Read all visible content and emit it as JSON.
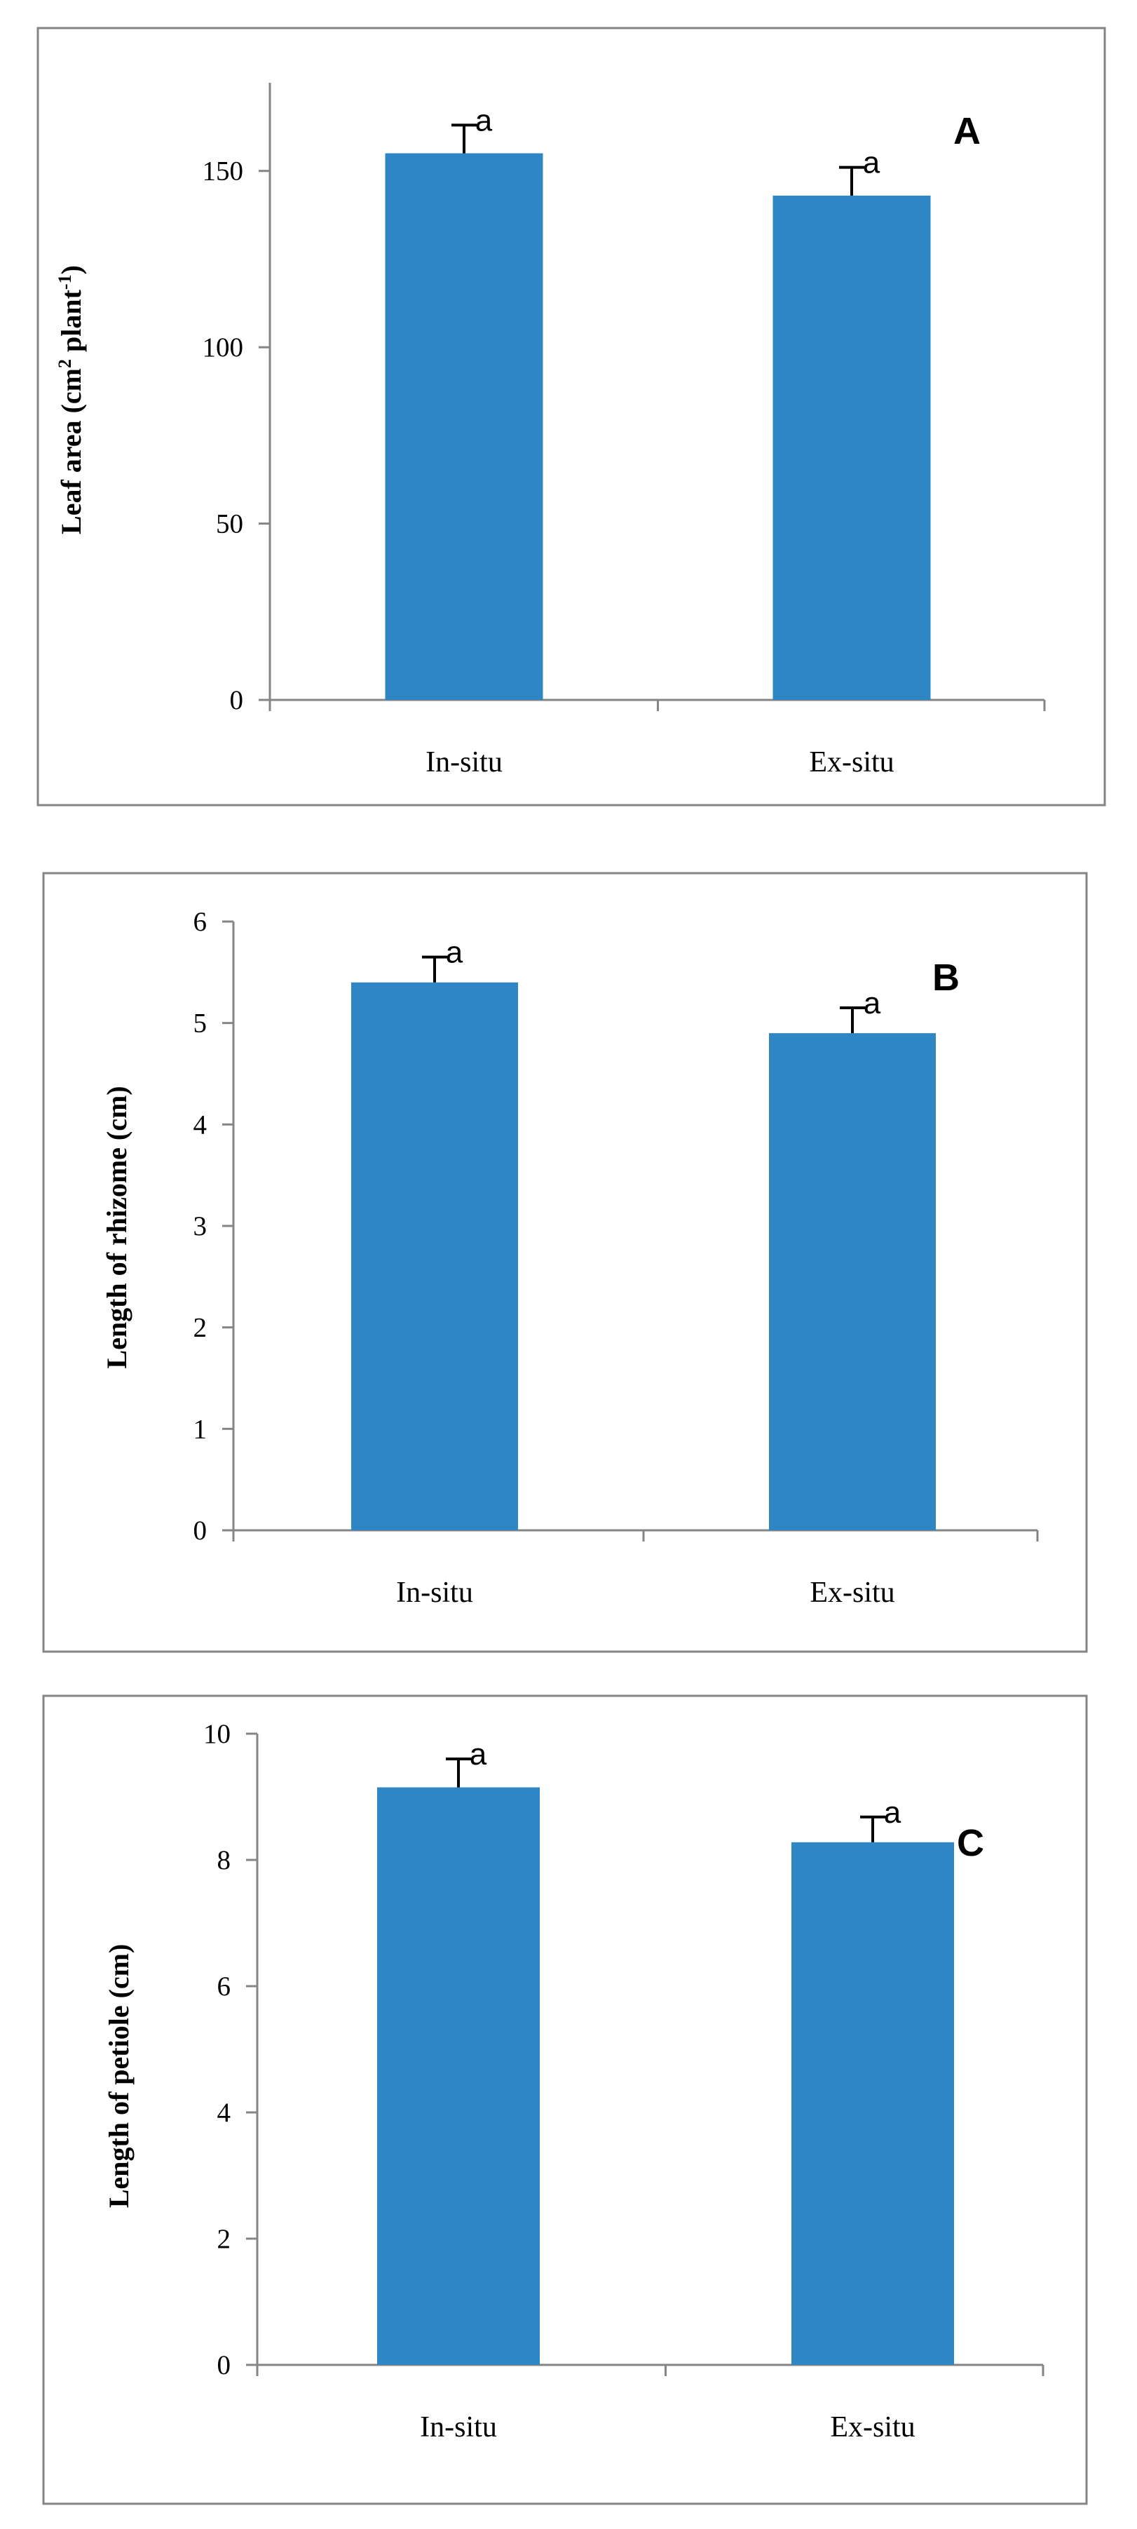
{
  "colors": {
    "bar": "#2e87c4",
    "axis": "#858585",
    "frame": "#858585",
    "error_bar": "#000000"
  },
  "chart_data": [
    {
      "type": "bar",
      "panel_label": "A",
      "categories": [
        "In-situ",
        "Ex-situ"
      ],
      "values": [
        155,
        143
      ],
      "errors": [
        8,
        8
      ],
      "significance": [
        "a",
        "a"
      ],
      "ylabel_main": "Leaf area (cm",
      "ylabel_sup1": "2",
      "ylabel_mid": " plant",
      "ylabel_sup2": "-1",
      "ylabel_end": ")",
      "ylim": [
        0,
        175
      ],
      "yticks": [
        0,
        50,
        100,
        150
      ],
      "grid": false
    },
    {
      "type": "bar",
      "panel_label": "B",
      "categories": [
        "In-situ",
        "Ex-situ"
      ],
      "values": [
        5.4,
        4.9
      ],
      "errors": [
        0.25,
        0.25
      ],
      "significance": [
        "a",
        "a"
      ],
      "ylabel_main": "Length of rhizome (cm)",
      "ylim": [
        0,
        6
      ],
      "yticks": [
        0,
        1,
        2,
        3,
        4,
        5,
        6
      ],
      "grid": false
    },
    {
      "type": "bar",
      "panel_label": "C",
      "categories": [
        "In-situ",
        "Ex-situ"
      ],
      "values": [
        9.15,
        8.28
      ],
      "errors": [
        0.45,
        0.4
      ],
      "significance": [
        "a",
        "a"
      ],
      "ylabel_main": "Length of petiole (cm)",
      "ylim": [
        0,
        10
      ],
      "yticks": [
        0,
        2,
        4,
        6,
        8,
        10
      ],
      "grid": false
    }
  ]
}
